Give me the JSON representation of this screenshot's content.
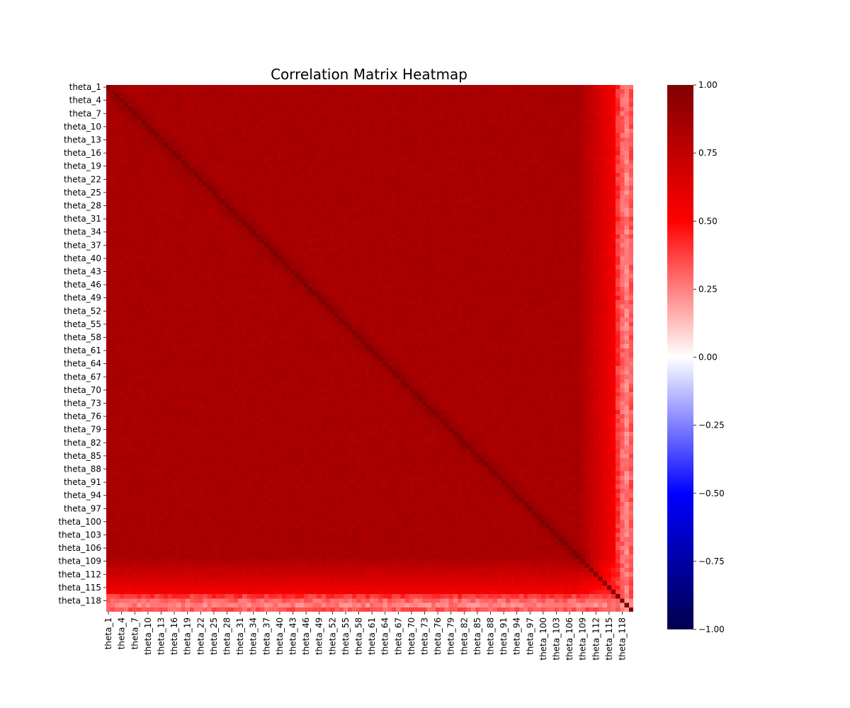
{
  "chart_data": {
    "type": "heatmap",
    "title": "Correlation Matrix Heatmap",
    "xlabel": "",
    "ylabel": "",
    "n_variables": 120,
    "variable_prefix": "theta_",
    "row_tick_labels": [
      "theta_1",
      "theta_4",
      "theta_7",
      "theta_10",
      "theta_13",
      "theta_16",
      "theta_19",
      "theta_22",
      "theta_25",
      "theta_28",
      "theta_31",
      "theta_34",
      "theta_37",
      "theta_40",
      "theta_43",
      "theta_46",
      "theta_49",
      "theta_52",
      "theta_55",
      "theta_58",
      "theta_61",
      "theta_64",
      "theta_67",
      "theta_70",
      "theta_73",
      "theta_76",
      "theta_79",
      "theta_82",
      "theta_85",
      "theta_88",
      "theta_91",
      "theta_94",
      "theta_97",
      "theta_100",
      "theta_103",
      "theta_106",
      "theta_109",
      "theta_112",
      "theta_115",
      "theta_118"
    ],
    "col_tick_labels": [
      "theta_1",
      "theta_4",
      "theta_7",
      "theta_10",
      "theta_13",
      "theta_16",
      "theta_19",
      "theta_22",
      "theta_25",
      "theta_28",
      "theta_31",
      "theta_34",
      "theta_37",
      "theta_40",
      "theta_43",
      "theta_46",
      "theta_49",
      "theta_52",
      "theta_55",
      "theta_58",
      "theta_61",
      "theta_64",
      "theta_67",
      "theta_70",
      "theta_73",
      "theta_76",
      "theta_79",
      "theta_82",
      "theta_85",
      "theta_88",
      "theta_91",
      "theta_94",
      "theta_97",
      "theta_100",
      "theta_103",
      "theta_106",
      "theta_109",
      "theta_112",
      "theta_115",
      "theta_118"
    ],
    "value_range": [
      -1.0,
      1.0
    ],
    "colormap": "seismic",
    "colormap_stops": [
      "#00004d",
      "#0000ff",
      "#ffffff",
      "#ff0000",
      "#800000"
    ],
    "colorbar": {
      "ticks": [
        1.0,
        0.75,
        0.5,
        0.25,
        0.0,
        -0.25,
        -0.5,
        -0.75,
        -1.0
      ],
      "tick_labels": [
        "1.00",
        "0.75",
        "0.50",
        "0.25",
        "0.00",
        "−0.25",
        "−0.50",
        "−0.75",
        "−1.00"
      ]
    },
    "correlation_structure": {
      "diagonal": 1.0,
      "main_block_range": [
        1,
        108
      ],
      "main_block_value": 0.84,
      "transition_range": [
        109,
        116
      ],
      "transition_value": 0.55,
      "tail_variables": [
        117,
        118,
        119
      ],
      "tail_values": [
        0.4,
        0.3,
        0.25
      ],
      "last_variable": 120,
      "last_variable_value": 0.33
    }
  }
}
